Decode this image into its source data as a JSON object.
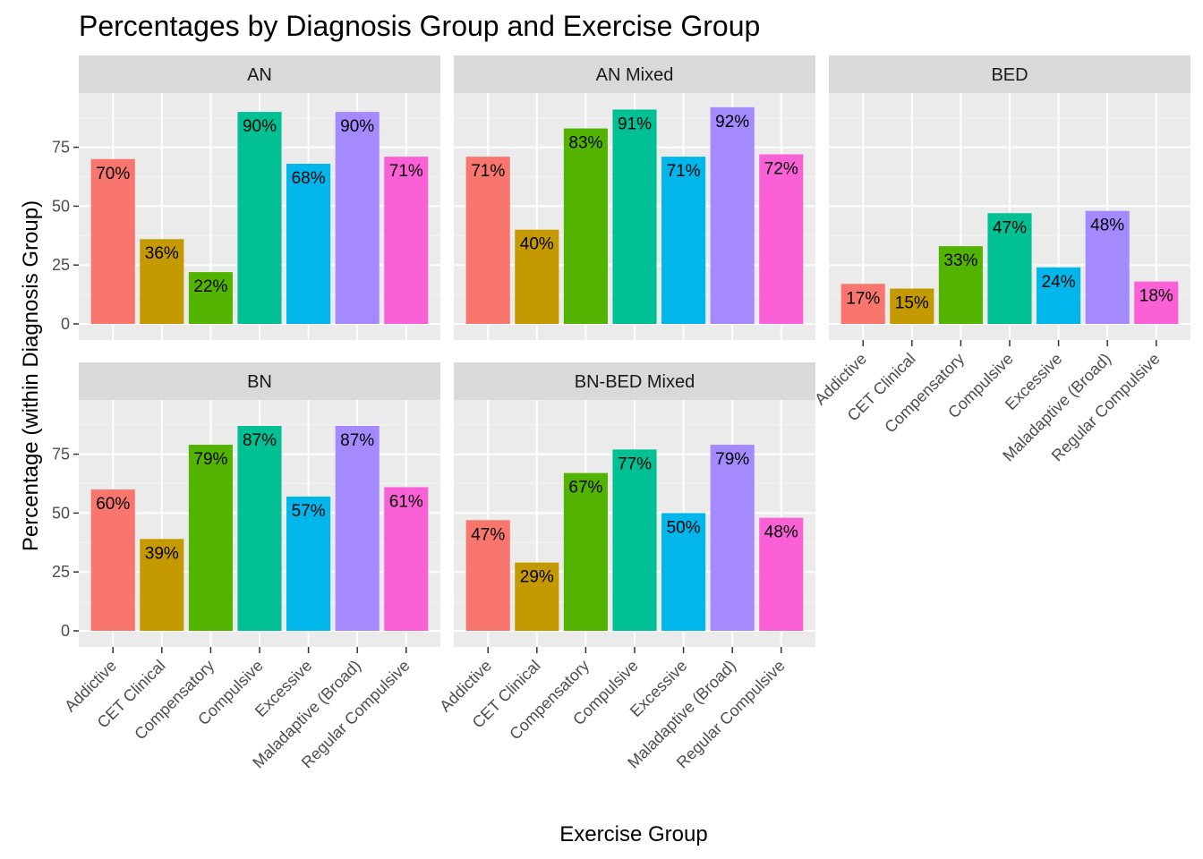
{
  "chart_data": {
    "type": "bar",
    "title": "Percentages by Diagnosis Group and Exercise Group",
    "xlabel": "Exercise Group",
    "ylabel": "Percentage (within Diagnosis Group)",
    "ylim": [
      0,
      100
    ],
    "yticks": [
      0,
      25,
      50,
      75
    ],
    "grid": true,
    "legend": "none",
    "categories": [
      "Addictive",
      "CET Clinical",
      "Compensatory",
      "Compulsive",
      "Excessive",
      "Maladaptive (Broad)",
      "Regular Compulsive"
    ],
    "colors": [
      "#F8766D",
      "#C49A00",
      "#53B400",
      "#00C094",
      "#00B6EB",
      "#A58AFF",
      "#FB61D7"
    ],
    "facets": [
      {
        "name": "AN",
        "values": [
          70,
          36,
          22,
          90,
          68,
          90,
          71
        ],
        "labels": [
          "70%",
          "36%",
          "22%",
          "90%",
          "68%",
          "90%",
          "71%"
        ]
      },
      {
        "name": "AN Mixed",
        "values": [
          71,
          40,
          83,
          91,
          71,
          92,
          72
        ],
        "labels": [
          "71%",
          "40%",
          "83%",
          "91%",
          "71%",
          "92%",
          "72%"
        ]
      },
      {
        "name": "BED",
        "values": [
          17,
          15,
          33,
          47,
          24,
          48,
          18
        ],
        "labels": [
          "17%",
          "15%",
          "33%",
          "47%",
          "24%",
          "48%",
          "18%"
        ]
      },
      {
        "name": "BN",
        "values": [
          60,
          39,
          79,
          87,
          57,
          87,
          61
        ],
        "labels": [
          "60%",
          "39%",
          "79%",
          "87%",
          "57%",
          "87%",
          "61%"
        ]
      },
      {
        "name": "BN-BED Mixed",
        "values": [
          47,
          29,
          67,
          77,
          50,
          79,
          48
        ],
        "labels": [
          "47%",
          "29%",
          "67%",
          "77%",
          "50%",
          "79%",
          "48%"
        ]
      }
    ]
  }
}
